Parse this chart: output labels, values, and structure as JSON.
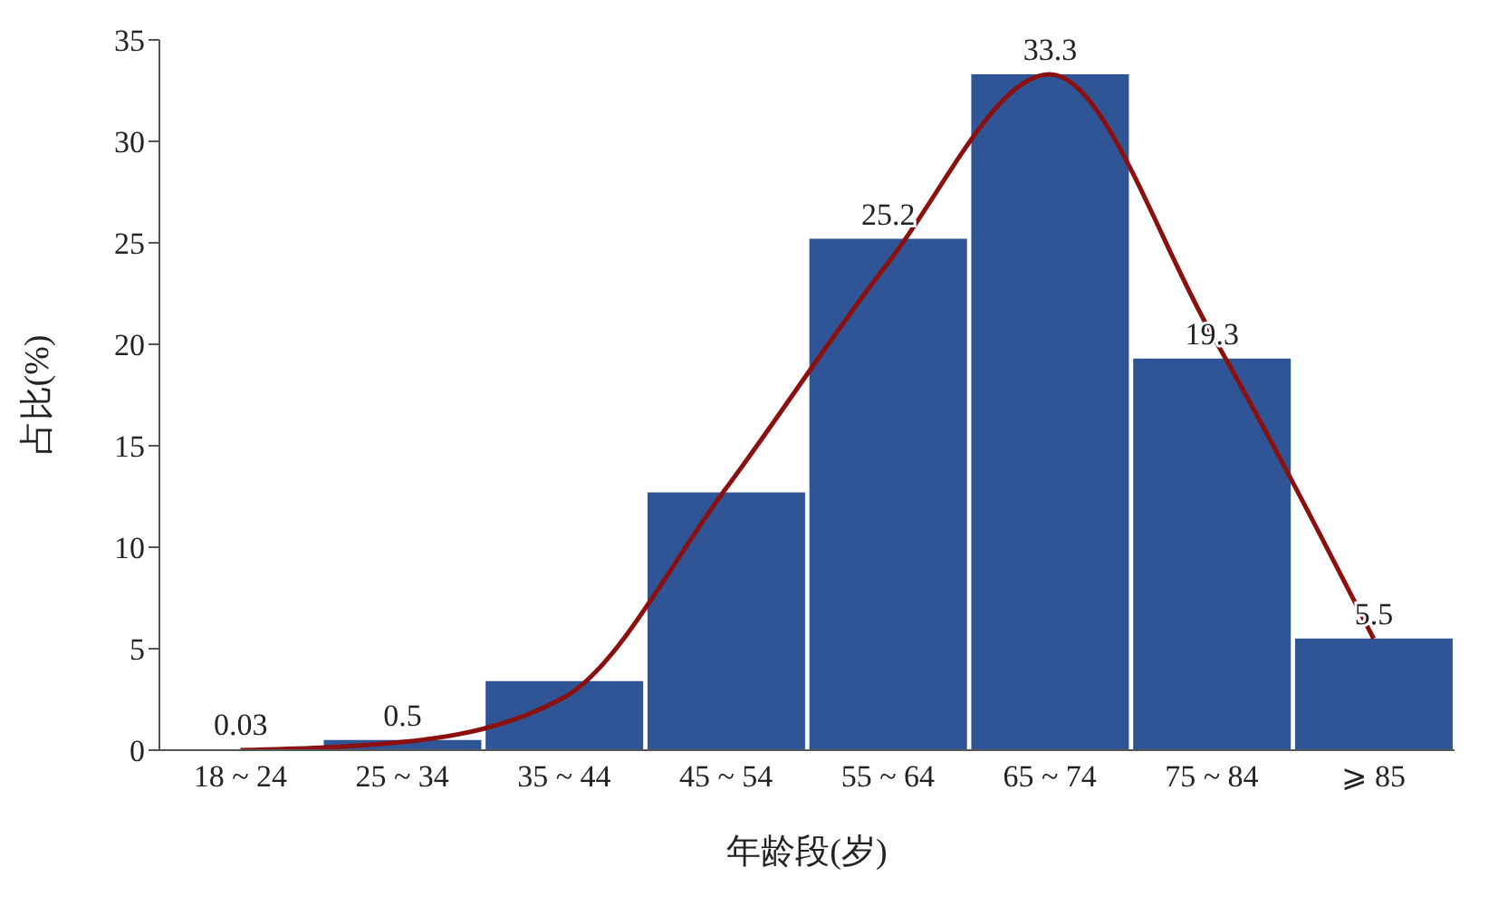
{
  "chart_data": {
    "type": "bar",
    "xlabel": "年龄段(岁)",
    "ylabel": "占比(%)",
    "categories": [
      "18 ~ 24",
      "25 ~ 34",
      "35 ~ 44",
      "45 ~ 54",
      "55 ~ 64",
      "65 ~ 74",
      "75 ~ 84",
      "⩾ 85"
    ],
    "series": [
      {
        "color": "#2f5597",
        "values": [
          0.03,
          0.5,
          3.4,
          12.7,
          25.2,
          33.3,
          19.3,
          5.5
        ],
        "value_labels": [
          "0.03",
          "0.5",
          null,
          null,
          "25.2",
          "33.3",
          "19.3",
          "5.5"
        ]
      },
      {
        "type": "line",
        "color": "#8b1010",
        "values": [
          0.0,
          0.4,
          2.6,
          12.9,
          24,
          33.3,
          20.5,
          5.5
        ]
      }
    ],
    "ylim": [
      0,
      35
    ],
    "yticks": [
      0,
      5,
      10,
      15,
      20,
      25,
      30,
      35
    ],
    "grid": false,
    "legend": false,
    "marker": "none",
    "line_style": "solid"
  }
}
